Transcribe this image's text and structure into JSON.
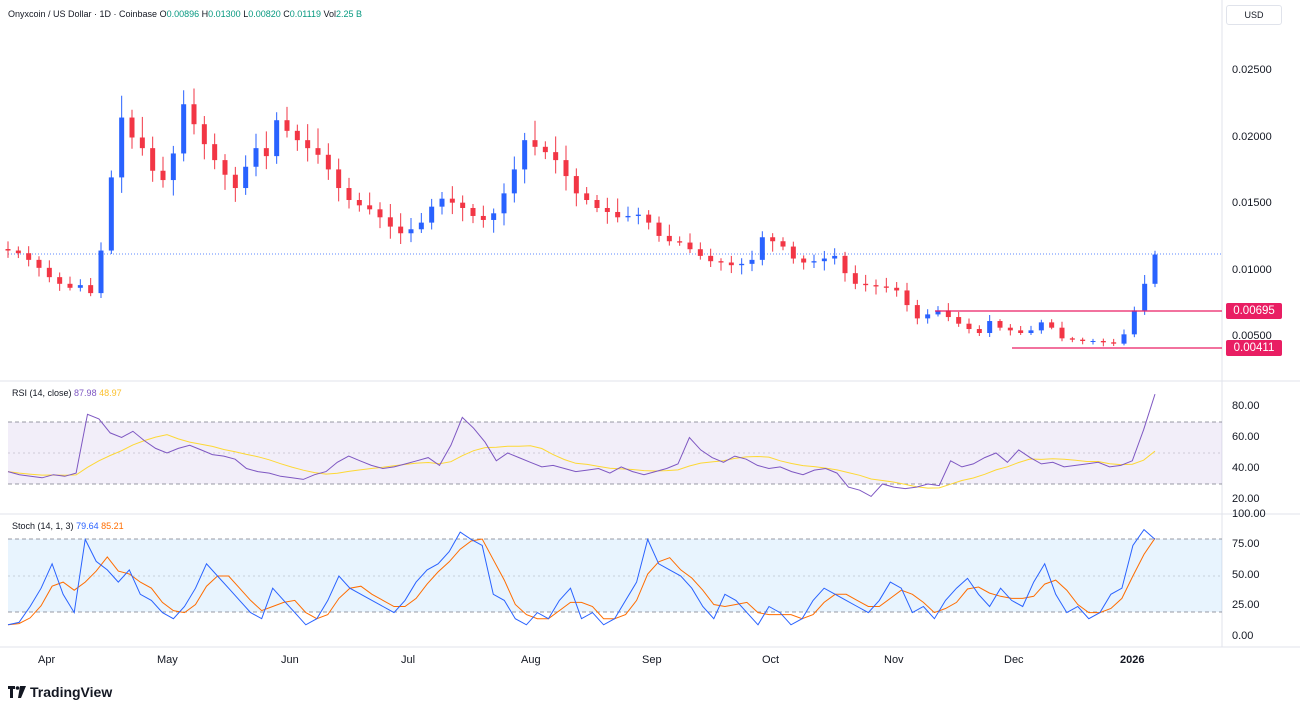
{
  "header": {
    "symbol": "Onyxcoin / US Dollar · 1D · Coinbase",
    "open_label": "O",
    "open": "0.00896",
    "high_label": "H",
    "high": "0.01300",
    "low_label": "L",
    "low": "0.00820",
    "close_label": "C",
    "close": "0.01119",
    "vol_label": "Vol",
    "vol": "2.25 B",
    "currency": "USD"
  },
  "price_axis": {
    "ticks": [
      "0.02500",
      "0.02000",
      "0.01500",
      "0.01000",
      "0.00500"
    ],
    "tick_values": [
      0.025,
      0.02,
      0.015,
      0.01,
      0.005
    ],
    "badges": [
      {
        "label": "0.00695",
        "value": 0.00695,
        "color": "#e91e63"
      },
      {
        "label": "0.00411",
        "value": 0.00411,
        "color": "#e91e63"
      }
    ]
  },
  "rsi": {
    "title": "RSI (14, close)",
    "value": "87.98",
    "ma_value": "48.97",
    "ticks": [
      "80.00",
      "60.00",
      "40.00",
      "20.00"
    ],
    "tick_values": [
      80,
      60,
      40,
      20
    ],
    "line_color": "#7e57c2",
    "ma_color": "#fdd835"
  },
  "stoch": {
    "title": "Stoch (14, 1, 3)",
    "k_value": "79.64",
    "d_value": "85.21",
    "ticks": [
      "100.00",
      "75.00",
      "50.00",
      "25.00",
      "0.00"
    ],
    "tick_values": [
      100,
      75,
      50,
      25,
      0
    ],
    "k_color": "#2962ff",
    "d_color": "#ff6d00"
  },
  "time_axis": {
    "labels": [
      "Apr",
      "May",
      "Jun",
      "Jul",
      "Aug",
      "Sep",
      "Oct",
      "Nov",
      "Dec",
      "2026"
    ]
  },
  "brand": "TradingView",
  "colors": {
    "up": "#089981",
    "down": "#f23645",
    "candle_up": "#2962ff",
    "candle_down": "#f23645",
    "badge": "#e91e63"
  },
  "chart_data": {
    "type": "candlestick",
    "title": "Onyxcoin / US Dollar · 1D · Coinbase",
    "x_range": [
      "2025-03-22",
      "2026-01-08"
    ],
    "close_series": [
      0.0115,
      0.0113,
      0.0108,
      0.0102,
      0.0095,
      0.009,
      0.0087,
      0.0089,
      0.0083,
      0.0115,
      0.017,
      0.0215,
      0.02,
      0.0192,
      0.0175,
      0.0168,
      0.0188,
      0.0225,
      0.021,
      0.0195,
      0.0183,
      0.0172,
      0.0162,
      0.0178,
      0.0192,
      0.0186,
      0.0213,
      0.0205,
      0.0198,
      0.0192,
      0.0187,
      0.0176,
      0.0162,
      0.0153,
      0.0149,
      0.0146,
      0.014,
      0.0133,
      0.0128,
      0.0131,
      0.0136,
      0.0148,
      0.0154,
      0.0151,
      0.0147,
      0.0141,
      0.0138,
      0.0143,
      0.0158,
      0.0176,
      0.0198,
      0.0193,
      0.0189,
      0.0183,
      0.0171,
      0.0158,
      0.0153,
      0.0147,
      0.0144,
      0.014,
      0.0141,
      0.0142,
      0.0136,
      0.0126,
      0.0122,
      0.0121,
      0.0116,
      0.0111,
      0.0107,
      0.0106,
      0.0104,
      0.0105,
      0.0108,
      0.0125,
      0.0122,
      0.0118,
      0.0109,
      0.0106,
      0.0107,
      0.0109,
      0.0111,
      0.0098,
      0.009,
      0.0089,
      0.0088,
      0.0087,
      0.0085,
      0.0074,
      0.0064,
      0.0067,
      0.007,
      0.0065,
      0.006,
      0.0056,
      0.0053,
      0.0062,
      0.0057,
      0.0055,
      0.0053,
      0.0055,
      0.0061,
      0.0057,
      0.0049,
      0.0048,
      0.0047,
      0.0047,
      0.0046,
      0.0045,
      0.0052,
      0.007,
      0.009,
      0.0112
    ],
    "rsi_series": [
      38,
      36,
      35,
      34,
      36,
      35,
      37,
      75,
      72,
      63,
      60,
      64,
      58,
      53,
      50,
      53,
      55,
      52,
      49,
      48,
      46,
      40,
      38,
      37,
      35,
      34,
      33,
      36,
      38,
      44,
      48,
      45,
      42,
      40,
      41,
      43,
      45,
      47,
      42,
      55,
      73,
      66,
      57,
      45,
      50,
      47,
      44,
      41,
      42,
      40,
      38,
      39,
      40,
      37,
      41,
      38,
      36,
      38,
      40,
      43,
      60,
      52,
      47,
      44,
      48,
      46,
      42,
      40,
      41,
      38,
      36,
      39,
      40,
      37,
      28,
      26,
      22,
      30,
      28,
      27,
      28,
      30,
      29,
      45,
      41,
      43,
      47,
      50,
      44,
      52,
      47,
      43,
      44,
      41,
      42,
      43,
      44,
      41,
      42,
      45,
      65,
      88
    ],
    "stoch_k_series": [
      10,
      12,
      25,
      40,
      60,
      35,
      20,
      80,
      62,
      55,
      45,
      55,
      35,
      30,
      20,
      15,
      25,
      40,
      60,
      50,
      40,
      30,
      20,
      15,
      40,
      30,
      20,
      10,
      15,
      30,
      50,
      40,
      35,
      30,
      25,
      20,
      30,
      45,
      55,
      60,
      70,
      86,
      80,
      75,
      35,
      30,
      15,
      10,
      20,
      15,
      30,
      40,
      15,
      20,
      10,
      15,
      30,
      45,
      80,
      60,
      55,
      50,
      40,
      25,
      15,
      35,
      30,
      20,
      10,
      25,
      20,
      10,
      15,
      30,
      40,
      35,
      30,
      25,
      20,
      30,
      45,
      40,
      20,
      25,
      15,
      30,
      40,
      48,
      35,
      25,
      40,
      30,
      25,
      45,
      60,
      35,
      20,
      25,
      15,
      20,
      35,
      40,
      75,
      88,
      80
    ],
    "rsi_ylim": [
      0,
      100
    ],
    "stoch_ylim": [
      0,
      100
    ]
  }
}
